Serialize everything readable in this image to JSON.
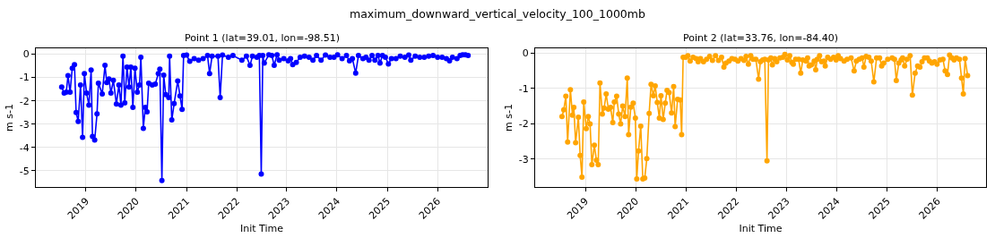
{
  "chart_data": [
    {
      "type": "line",
      "annotations": [
        "maximum_downward_vertical_velocity_100_1000mb"
      ],
      "title": "Point 1 (lat=39.01, lon=-98.51)",
      "xlabel": "Init Time",
      "ylabel": "m s-1",
      "marker": "circle",
      "grid": true,
      "xlim": [
        "2018-01-01",
        "2027-01-01"
      ],
      "ylim": [
        -5.69,
        0.25
      ],
      "xticks": [
        {
          "value": "2019-01-01",
          "label": "2019"
        },
        {
          "value": "2020-01-01",
          "label": "2020"
        },
        {
          "value": "2021-01-01",
          "label": "2021"
        },
        {
          "value": "2022-01-01",
          "label": "2022"
        },
        {
          "value": "2023-01-01",
          "label": "2023"
        },
        {
          "value": "2024-01-01",
          "label": "2024"
        },
        {
          "value": "2025-01-01",
          "label": "2025"
        },
        {
          "value": "2026-01-01",
          "label": "2026"
        }
      ],
      "yticks": [
        -5,
        -4,
        -3,
        -2,
        -1,
        0
      ],
      "x": [
        "2018-07-08",
        "2018-07-26",
        "2018-08-10",
        "2018-08-23",
        "2018-09-07",
        "2018-09-23",
        "2018-10-09",
        "2018-10-21",
        "2018-11-05",
        "2018-11-22",
        "2018-12-07",
        "2018-12-20",
        "2019-01-05",
        "2019-01-22",
        "2019-02-07",
        "2019-02-17",
        "2019-03-05",
        "2019-03-22",
        "2019-04-01",
        "2019-04-29",
        "2019-05-19",
        "2019-06-01",
        "2019-06-17",
        "2019-07-01",
        "2019-07-19",
        "2019-08-10",
        "2019-08-28",
        "2019-09-12",
        "2019-09-27",
        "2019-10-10",
        "2019-10-26",
        "2019-11-10",
        "2019-11-23",
        "2019-12-08",
        "2019-12-23",
        "2020-01-09",
        "2020-01-25",
        "2020-02-04",
        "2020-02-22",
        "2020-03-07",
        "2020-03-20",
        "2020-04-01",
        "2020-04-27",
        "2020-05-19",
        "2020-06-10",
        "2020-06-21",
        "2020-07-06",
        "2020-07-19",
        "2020-08-03",
        "2020-08-25",
        "2020-08-31",
        "2020-09-16",
        "2020-10-03",
        "2020-10-29",
        "2020-11-15",
        "2020-11-30",
        "2020-12-11",
        "2021-01-02",
        "2021-01-25",
        "2021-02-26",
        "2021-03-30",
        "2021-05-02",
        "2021-06-03",
        "2021-06-18",
        "2021-07-06",
        "2021-08-18",
        "2021-09-03",
        "2021-09-20",
        "2021-11-02",
        "2021-12-05",
        "2022-02-08",
        "2022-03-13",
        "2022-04-08",
        "2022-04-26",
        "2022-05-28",
        "2022-06-15",
        "2022-06-29",
        "2022-07-10",
        "2022-07-21",
        "2022-08-23",
        "2022-09-14",
        "2022-10-01",
        "2022-10-22",
        "2022-11-07",
        "2022-12-10",
        "2023-01-11",
        "2023-01-28",
        "2023-02-13",
        "2023-03-11",
        "2023-04-08",
        "2023-05-10",
        "2023-06-12",
        "2023-07-10",
        "2023-08-05",
        "2023-09-07",
        "2023-10-09",
        "2023-11-11",
        "2023-12-10",
        "2024-01-05",
        "2024-02-07",
        "2024-03-10",
        "2024-04-01",
        "2024-04-22",
        "2024-05-16",
        "2024-06-05",
        "2024-07-08",
        "2024-07-30",
        "2024-08-21",
        "2024-09-12",
        "2024-10-03",
        "2024-10-25",
        "2024-11-09",
        "2024-11-27",
        "2024-12-18",
        "2025-01-09",
        "2025-01-31",
        "2025-03-05",
        "2025-04-05",
        "2025-05-09",
        "2025-06-06",
        "2025-06-21",
        "2025-07-23",
        "2025-08-25",
        "2025-09-27",
        "2025-10-29",
        "2025-11-30",
        "2026-01-02",
        "2026-02-04",
        "2026-03-07",
        "2026-03-30",
        "2026-04-20",
        "2026-05-23",
        "2026-06-15",
        "2026-07-03",
        "2026-07-23",
        "2026-08-12"
      ],
      "series": [
        {
          "color": "#0000ff",
          "values": [
            -1.41,
            -1.67,
            -1.63,
            -0.92,
            -1.63,
            -0.6,
            -0.45,
            -2.5,
            -2.88,
            -1.32,
            -3.56,
            -0.83,
            -1.67,
            -2.18,
            -0.68,
            -3.52,
            -3.68,
            -2.56,
            -1.24,
            -1.7,
            -0.48,
            -1.22,
            -1.06,
            -1.67,
            -1.12,
            -2.14,
            -1.32,
            -2.18,
            -0.09,
            -2.09,
            -0.55,
            -1.41,
            -0.55,
            -2.28,
            -0.6,
            -1.63,
            -1.32,
            -0.13,
            -3.18,
            -2.28,
            -2.47,
            -1.24,
            -1.32,
            -1.28,
            -0.83,
            -0.64,
            -5.41,
            -0.9,
            -1.73,
            -1.86,
            -0.09,
            -2.82,
            -2.12,
            -1.15,
            -1.79,
            -2.37,
            -0.06,
            -0.04,
            -0.31,
            -0.19,
            -0.26,
            -0.19,
            -0.06,
            -0.83,
            -0.09,
            -0.09,
            -1.86,
            -0.04,
            -0.13,
            -0.06,
            -0.26,
            -0.09,
            -0.48,
            -0.09,
            -0.13,
            -0.06,
            -5.13,
            -0.06,
            -0.38,
            -0.03,
            -0.06,
            -0.48,
            -0.03,
            -0.26,
            -0.19,
            -0.29,
            -0.19,
            -0.45,
            -0.35,
            -0.13,
            -0.09,
            -0.13,
            -0.26,
            -0.06,
            -0.26,
            -0.04,
            -0.13,
            -0.13,
            -0.03,
            -0.19,
            -0.06,
            -0.29,
            -0.19,
            -0.81,
            -0.06,
            -0.19,
            -0.13,
            -0.26,
            -0.06,
            -0.26,
            -0.06,
            -0.38,
            -0.06,
            -0.13,
            -0.42,
            -0.19,
            -0.19,
            -0.09,
            -0.13,
            -0.04,
            -0.26,
            -0.09,
            -0.13,
            -0.13,
            -0.09,
            -0.06,
            -0.13,
            -0.13,
            -0.19,
            -0.29,
            -0.13,
            -0.19,
            -0.06,
            -0.03,
            -0.03,
            -0.06
          ]
        }
      ]
    },
    {
      "type": "line",
      "title": "Point 2 (lat=33.76, lon=-84.40)",
      "xlabel": "Init Time",
      "ylabel": "m s-1",
      "marker": "circle",
      "grid": true,
      "xlim": [
        "2018-01-01",
        "2026-12-20"
      ],
      "ylim": [
        -3.79,
        0.13
      ],
      "xticks": [
        {
          "value": "2019-01-01",
          "label": "2019"
        },
        {
          "value": "2020-01-01",
          "label": "2020"
        },
        {
          "value": "2021-01-01",
          "label": "2021"
        },
        {
          "value": "2022-01-01",
          "label": "2022"
        },
        {
          "value": "2023-01-01",
          "label": "2023"
        },
        {
          "value": "2024-01-01",
          "label": "2024"
        },
        {
          "value": "2025-01-01",
          "label": "2025"
        },
        {
          "value": "2026-01-01",
          "label": "2026"
        }
      ],
      "yticks": [
        -3,
        -2,
        -1,
        0
      ],
      "x": [
        "2018-07-15",
        "2018-07-28",
        "2018-08-12",
        "2018-08-25",
        "2018-09-14",
        "2018-09-29",
        "2018-10-09",
        "2018-10-22",
        "2018-11-11",
        "2018-11-24",
        "2018-12-07",
        "2018-12-20",
        "2019-01-07",
        "2019-01-22",
        "2019-02-04",
        "2019-02-17",
        "2019-03-07",
        "2019-03-22",
        "2019-04-04",
        "2019-04-17",
        "2019-05-04",
        "2019-05-17",
        "2019-06-01",
        "2019-06-17",
        "2019-07-03",
        "2019-07-19",
        "2019-07-30",
        "2019-08-16",
        "2019-08-31",
        "2019-09-14",
        "2019-09-29",
        "2019-10-16",
        "2019-11-01",
        "2019-11-11",
        "2019-11-27",
        "2019-12-14",
        "2019-12-30",
        "2020-01-09",
        "2020-01-22",
        "2020-02-07",
        "2020-02-22",
        "2020-03-07",
        "2020-03-22",
        "2020-04-08",
        "2020-04-22",
        "2020-05-09",
        "2020-05-22",
        "2020-06-06",
        "2020-06-21",
        "2020-07-03",
        "2020-07-19",
        "2020-08-03",
        "2020-08-16",
        "2020-08-31",
        "2020-09-18",
        "2020-10-03",
        "2020-10-14",
        "2020-11-01",
        "2020-11-20",
        "2020-11-30",
        "2020-12-11",
        "2020-12-30",
        "2021-01-14",
        "2021-01-31",
        "2021-02-21",
        "2021-03-15",
        "2021-03-30",
        "2021-04-16",
        "2021-05-08",
        "2021-05-30",
        "2021-06-21",
        "2021-07-12",
        "2021-08-03",
        "2021-08-25",
        "2021-09-16",
        "2021-10-03",
        "2021-10-18",
        "2021-11-09",
        "2021-11-30",
        "2021-12-23",
        "2022-01-13",
        "2022-02-04",
        "2022-02-26",
        "2022-03-13",
        "2022-03-30",
        "2022-04-16",
        "2022-05-02",
        "2022-05-23",
        "2022-06-12",
        "2022-06-25",
        "2022-07-12",
        "2022-07-27",
        "2022-08-12",
        "2022-08-23",
        "2022-09-09",
        "2022-09-20",
        "2022-10-07",
        "2022-10-22",
        "2022-11-14",
        "2022-12-05",
        "2022-12-20",
        "2023-01-07",
        "2023-01-24",
        "2023-02-08",
        "2023-02-19",
        "2023-03-08",
        "2023-03-30",
        "2023-04-14",
        "2023-04-29",
        "2023-05-22",
        "2023-06-03",
        "2023-06-14",
        "2023-06-30",
        "2023-07-21",
        "2023-08-01",
        "2023-08-12",
        "2023-08-29",
        "2023-09-13",
        "2023-09-29",
        "2023-10-09",
        "2023-10-27",
        "2023-11-17",
        "2023-12-09",
        "2023-12-27",
        "2024-01-11",
        "2024-01-28",
        "2024-02-23",
        "2024-03-16",
        "2024-04-14",
        "2024-05-06",
        "2024-05-22",
        "2024-06-12",
        "2024-07-03",
        "2024-07-16",
        "2024-08-01",
        "2024-08-21",
        "2024-09-07",
        "2024-09-26",
        "2024-10-16",
        "2024-11-07",
        "2024-11-22",
        "2024-12-07",
        "2025-01-05",
        "2025-02-06",
        "2025-02-23",
        "2025-03-08",
        "2025-03-26",
        "2025-04-12",
        "2025-04-23",
        "2025-05-08",
        "2025-05-25",
        "2025-06-17",
        "2025-07-03",
        "2025-07-23",
        "2025-08-10",
        "2025-08-27",
        "2025-09-11",
        "2025-09-29",
        "2025-10-20",
        "2025-11-04",
        "2025-11-22",
        "2025-12-11",
        "2025-12-29",
        "2026-01-20",
        "2026-02-10",
        "2026-02-26",
        "2026-03-15",
        "2026-03-30",
        "2026-04-16",
        "2026-05-02",
        "2026-05-19",
        "2026-06-10",
        "2026-06-25",
        "2026-07-08",
        "2026-07-21",
        "2026-08-08"
      ],
      "series": [
        {
          "color": "#ffa500",
          "values": [
            -1.8,
            -1.61,
            -1.22,
            -2.52,
            -1.04,
            -1.76,
            -1.54,
            -2.54,
            -1.82,
            -2.9,
            -3.51,
            -1.39,
            -2.14,
            -1.8,
            -2.01,
            -3.16,
            -2.61,
            -3.03,
            -3.16,
            -0.85,
            -1.73,
            -1.56,
            -1.16,
            -1.59,
            -1.54,
            -1.97,
            -1.39,
            -1.22,
            -1.73,
            -2.01,
            -1.5,
            -1.8,
            -0.71,
            -2.31,
            -1.53,
            -1.42,
            -1.84,
            -3.56,
            -2.77,
            -2.07,
            -3.56,
            -3.54,
            -2.99,
            -1.71,
            -0.89,
            -1.21,
            -0.93,
            -1.4,
            -1.84,
            -1.21,
            -1.88,
            -1.42,
            -1.06,
            -1.12,
            -1.7,
            -0.95,
            -2.08,
            -1.31,
            -1.33,
            -2.31,
            -0.12,
            -0.12,
            -0.08,
            -0.23,
            -0.12,
            -0.16,
            -0.25,
            -0.16,
            -0.25,
            -0.18,
            -0.1,
            -0.21,
            -0.08,
            -0.21,
            -0.12,
            -0.4,
            -0.29,
            -0.23,
            -0.16,
            -0.18,
            -0.23,
            -0.16,
            -0.21,
            -0.1,
            -0.32,
            -0.08,
            -0.18,
            -0.18,
            -0.74,
            -0.25,
            -0.2,
            -0.18,
            -3.05,
            -0.2,
            -0.14,
            -0.34,
            -0.16,
            -0.25,
            -0.14,
            -0.12,
            -0.04,
            -0.2,
            -0.08,
            -0.27,
            -0.32,
            -0.18,
            -0.18,
            -0.57,
            -0.2,
            -0.23,
            -0.14,
            -0.37,
            -0.34,
            -0.23,
            -0.48,
            -0.18,
            -0.08,
            -0.25,
            -0.23,
            -0.37,
            -0.12,
            -0.18,
            -0.12,
            -0.2,
            -0.08,
            -0.16,
            -0.23,
            -0.18,
            -0.14,
            -0.51,
            -0.23,
            -0.18,
            -0.14,
            -0.4,
            -0.1,
            -0.12,
            -0.23,
            -0.82,
            -0.14,
            -0.14,
            -0.37,
            -0.29,
            -0.18,
            -0.14,
            -0.18,
            -0.78,
            -0.29,
            -0.2,
            -0.14,
            -0.37,
            -0.18,
            -0.08,
            -1.19,
            -0.57,
            -0.37,
            -0.4,
            -0.25,
            -0.14,
            -0.14,
            -0.23,
            -0.29,
            -0.25,
            -0.32,
            -0.2,
            -0.18,
            -0.51,
            -0.61,
            -0.06,
            -0.14,
            -0.2,
            -0.14,
            -0.18,
            -0.71,
            -1.16,
            -0.16,
            -0.64
          ]
        }
      ]
    }
  ]
}
